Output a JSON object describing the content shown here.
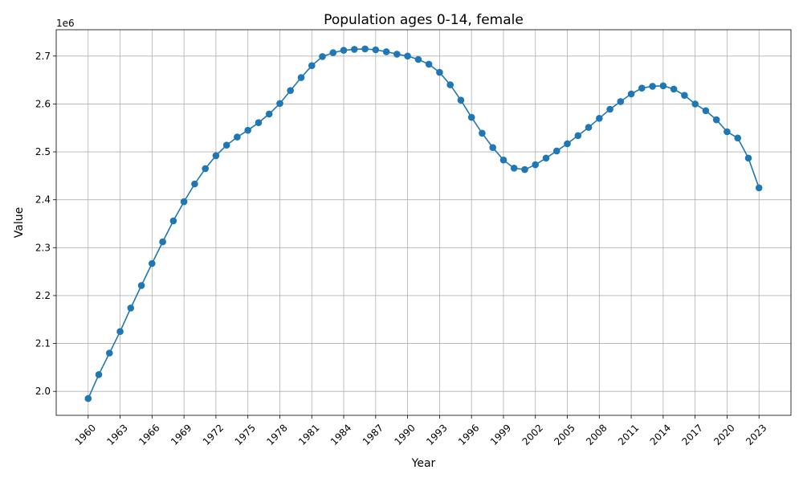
{
  "chart_data": {
    "type": "line",
    "title": "Population ages 0-14, female",
    "xlabel": "Year",
    "ylabel": "Value",
    "y_multiplier_label": "1e6",
    "xlim": [
      1957,
      2026
    ],
    "ylim": [
      1950000,
      2755000
    ],
    "x_ticks": [
      1960,
      1963,
      1966,
      1969,
      1972,
      1975,
      1978,
      1981,
      1984,
      1987,
      1990,
      1993,
      1996,
      1999,
      2002,
      2005,
      2008,
      2011,
      2014,
      2017,
      2020,
      2023
    ],
    "y_ticks": [
      2000000,
      2100000,
      2200000,
      2300000,
      2400000,
      2500000,
      2600000,
      2700000
    ],
    "y_tick_labels": [
      "2.0",
      "2.1",
      "2.2",
      "2.3",
      "2.4",
      "2.5",
      "2.6",
      "2.7"
    ],
    "grid": true,
    "color": "#1f77b4",
    "x": [
      1960,
      1961,
      1962,
      1963,
      1964,
      1965,
      1966,
      1967,
      1968,
      1969,
      1970,
      1971,
      1972,
      1973,
      1974,
      1975,
      1976,
      1977,
      1978,
      1979,
      1980,
      1981,
      1982,
      1983,
      1984,
      1985,
      1986,
      1987,
      1988,
      1989,
      1990,
      1991,
      1992,
      1993,
      1994,
      1995,
      1996,
      1997,
      1998,
      1999,
      2000,
      2001,
      2002,
      2003,
      2004,
      2005,
      2006,
      2007,
      2008,
      2009,
      2010,
      2011,
      2012,
      2013,
      2014,
      2015,
      2016,
      2017,
      2018,
      2019,
      2020,
      2021,
      2022,
      2023
    ],
    "y": [
      1985000,
      2035000,
      2080000,
      2125000,
      2174000,
      2221000,
      2267000,
      2312000,
      2356000,
      2396000,
      2433000,
      2465000,
      2492000,
      2514000,
      2531000,
      2545000,
      2561000,
      2579000,
      2601000,
      2628000,
      2655000,
      2680000,
      2699000,
      2707000,
      2712000,
      2714000,
      2715000,
      2713000,
      2709000,
      2704000,
      2700000,
      2693000,
      2683000,
      2666000,
      2640000,
      2608000,
      2572000,
      2539000,
      2509000,
      2483000,
      2466000,
      2463000,
      2473000,
      2487000,
      2502000,
      2517000,
      2534000,
      2551000,
      2570000,
      2589000,
      2605000,
      2621000,
      2633000,
      2637000,
      2638000,
      2631000,
      2618000,
      2600000,
      2586000,
      2567000,
      2542000,
      2529000,
      2487000,
      2425000
    ]
  }
}
